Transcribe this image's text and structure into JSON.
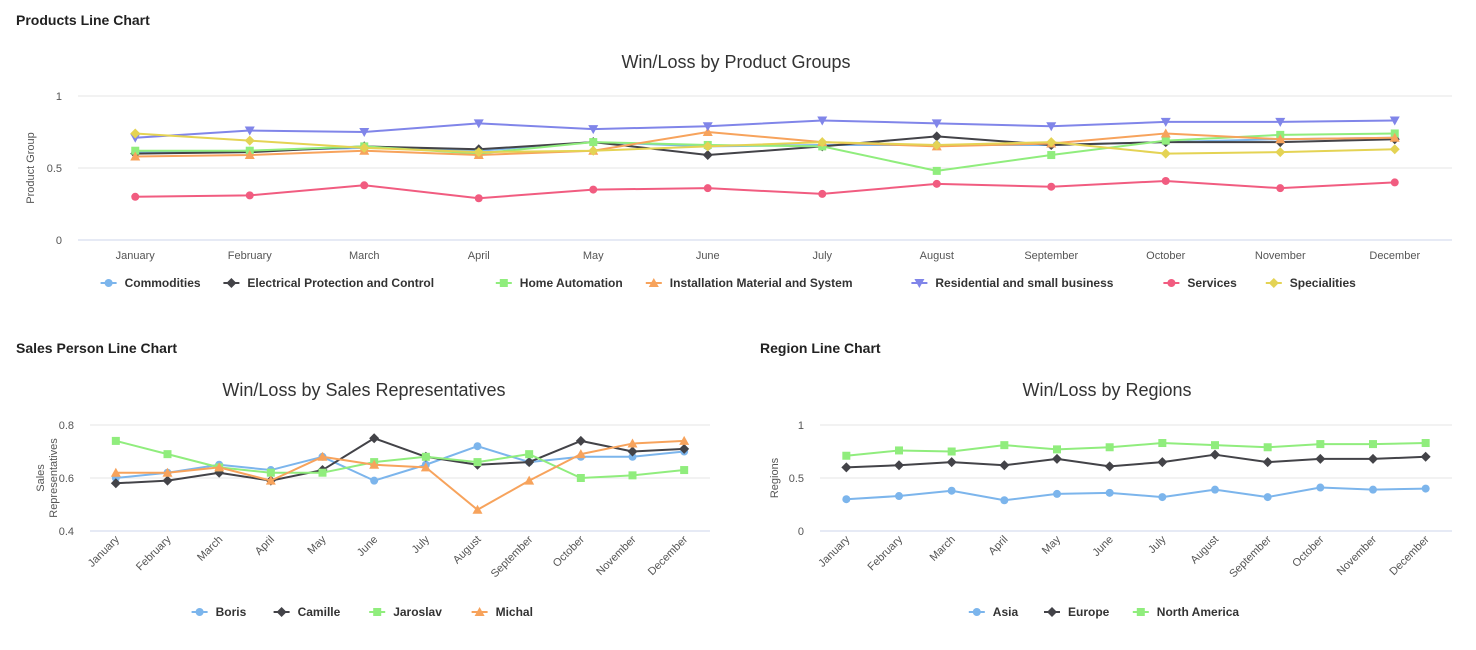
{
  "sections": {
    "products": "Products Line Chart",
    "sales_person": "Sales Person Line Chart",
    "region": "Region Line Chart"
  },
  "chart_data": [
    {
      "type": "line",
      "title": "Win/Loss by Product Groups",
      "xlabel": "",
      "ylabel": "Product Group",
      "ylim": [
        0,
        1
      ],
      "yticks": [
        "0",
        "0.5",
        "1"
      ],
      "categories": [
        "January",
        "February",
        "March",
        "April",
        "May",
        "June",
        "July",
        "August",
        "September",
        "October",
        "November",
        "December"
      ],
      "series": [
        {
          "name": "Commodities",
          "color": "#7cb5ec",
          "marker": "circle",
          "values": [
            0.61,
            0.62,
            0.64,
            0.62,
            0.68,
            0.65,
            0.66,
            0.66,
            0.66,
            0.68,
            0.7,
            0.71
          ]
        },
        {
          "name": "Electrical Protection and Control",
          "color": "#434348",
          "marker": "diamond",
          "values": [
            0.6,
            0.61,
            0.65,
            0.63,
            0.68,
            0.59,
            0.65,
            0.72,
            0.66,
            0.68,
            0.68,
            0.7
          ]
        },
        {
          "name": "Home Automation",
          "color": "#90ed7d",
          "marker": "square",
          "values": [
            0.62,
            0.62,
            0.65,
            0.6,
            0.68,
            0.66,
            0.65,
            0.48,
            0.59,
            0.69,
            0.73,
            0.74
          ]
        },
        {
          "name": "Installation Material and System",
          "color": "#f7a35c",
          "marker": "triangle",
          "values": [
            0.58,
            0.59,
            0.62,
            0.59,
            0.62,
            0.75,
            0.68,
            0.65,
            0.67,
            0.74,
            0.7,
            0.71
          ]
        },
        {
          "name": "Residential and small business",
          "color": "#8085e9",
          "marker": "triangle-down",
          "values": [
            0.71,
            0.76,
            0.75,
            0.81,
            0.77,
            0.79,
            0.83,
            0.81,
            0.79,
            0.82,
            0.82,
            0.83
          ]
        },
        {
          "name": "Services",
          "color": "#f15c80",
          "marker": "circle",
          "values": [
            0.3,
            0.31,
            0.38,
            0.29,
            0.35,
            0.36,
            0.32,
            0.39,
            0.37,
            0.41,
            0.36,
            0.4
          ]
        },
        {
          "name": "Specialities",
          "color": "#e4d354",
          "marker": "diamond",
          "values": [
            0.74,
            0.69,
            0.64,
            0.61,
            0.62,
            0.65,
            0.68,
            0.66,
            0.68,
            0.6,
            0.61,
            0.63
          ]
        }
      ]
    },
    {
      "type": "line",
      "title": "Win/Loss by Sales Representatives",
      "xlabel": "",
      "ylabel": "Sales Representatives",
      "ylim": [
        0.4,
        0.8
      ],
      "yticks": [
        "0.4",
        "0.6",
        "0.8"
      ],
      "categories": [
        "January",
        "February",
        "March",
        "April",
        "May",
        "June",
        "July",
        "August",
        "September",
        "October",
        "November",
        "December"
      ],
      "series": [
        {
          "name": "Boris",
          "color": "#7cb5ec",
          "marker": "circle",
          "values": [
            0.6,
            0.62,
            0.65,
            0.63,
            0.68,
            0.59,
            0.65,
            0.72,
            0.66,
            0.68,
            0.68,
            0.7
          ]
        },
        {
          "name": "Camille",
          "color": "#434348",
          "marker": "diamond",
          "values": [
            0.58,
            0.59,
            0.62,
            0.59,
            0.63,
            0.75,
            0.68,
            0.65,
            0.66,
            0.74,
            0.7,
            0.71
          ]
        },
        {
          "name": "Jaroslav",
          "color": "#90ed7d",
          "marker": "square",
          "values": [
            0.74,
            0.69,
            0.64,
            0.62,
            0.62,
            0.66,
            0.68,
            0.66,
            0.69,
            0.6,
            0.61,
            0.63
          ]
        },
        {
          "name": "Michal",
          "color": "#f7a35c",
          "marker": "triangle",
          "values": [
            0.62,
            0.62,
            0.64,
            0.59,
            0.68,
            0.65,
            0.64,
            0.48,
            0.59,
            0.69,
            0.73,
            0.74
          ]
        }
      ]
    },
    {
      "type": "line",
      "title": "Win/Loss by Regions",
      "xlabel": "",
      "ylabel": "Regions",
      "ylim": [
        0,
        1
      ],
      "yticks": [
        "0",
        "0.5",
        "1"
      ],
      "categories": [
        "January",
        "February",
        "March",
        "April",
        "May",
        "June",
        "July",
        "August",
        "September",
        "October",
        "November",
        "December"
      ],
      "series": [
        {
          "name": "Asia",
          "color": "#7cb5ec",
          "marker": "circle",
          "values": [
            0.3,
            0.33,
            0.38,
            0.29,
            0.35,
            0.36,
            0.32,
            0.39,
            0.32,
            0.41,
            0.39,
            0.4
          ]
        },
        {
          "name": "Europe",
          "color": "#434348",
          "marker": "diamond",
          "values": [
            0.6,
            0.62,
            0.65,
            0.62,
            0.68,
            0.61,
            0.65,
            0.72,
            0.65,
            0.68,
            0.68,
            0.7
          ]
        },
        {
          "name": "North America",
          "color": "#90ed7d",
          "marker": "square",
          "values": [
            0.71,
            0.76,
            0.75,
            0.81,
            0.77,
            0.79,
            0.83,
            0.81,
            0.79,
            0.82,
            0.82,
            0.83
          ]
        }
      ]
    }
  ]
}
